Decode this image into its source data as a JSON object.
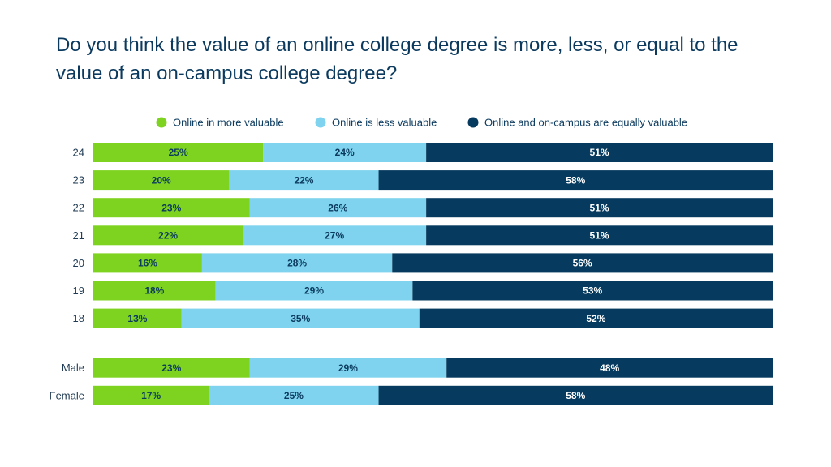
{
  "chart_data": {
    "type": "bar",
    "orientation": "horizontal",
    "stacked": true,
    "normalized": true,
    "title": "Do you think the value of an online college degree is more, less, or equal to the value of an on-campus college degree?",
    "xlabel": "",
    "ylabel": "",
    "xlim": [
      0,
      100
    ],
    "grid": false,
    "legend_position": "top",
    "categories": [
      "24",
      "23",
      "22",
      "21",
      "20",
      "19",
      "18",
      "Male",
      "Female"
    ],
    "groups": [
      [
        "24",
        "23",
        "22",
        "21",
        "20",
        "19",
        "18"
      ],
      [
        "Male",
        "Female"
      ]
    ],
    "series": [
      {
        "name": "Online in more valuable",
        "color": "#7ed321",
        "label_color": "#0b3a5e",
        "values": [
          25,
          20,
          23,
          22,
          16,
          18,
          13,
          23,
          17
        ],
        "labels": [
          "25%",
          "20%",
          "23%",
          "22%",
          "16%",
          "18%",
          "13%",
          "23%",
          "17%"
        ]
      },
      {
        "name": "Online is less valuable",
        "color": "#7fd3ee",
        "label_color": "#0b3a5e",
        "values": [
          24,
          22,
          26,
          27,
          28,
          29,
          35,
          29,
          25
        ],
        "labels": [
          "24%",
          "22%",
          "26%",
          "27%",
          "28%",
          "29%",
          "35%",
          "29%",
          "25%"
        ]
      },
      {
        "name": "Online and on-campus are equally valuable",
        "color": "#063a5e",
        "label_color": "#ffffff",
        "values": [
          51,
          58,
          51,
          51,
          56,
          53,
          52,
          48,
          58
        ],
        "labels": [
          "51%",
          "58%",
          "51%",
          "51%",
          "56%",
          "53%",
          "52%",
          "48%",
          "58%"
        ]
      }
    ]
  }
}
